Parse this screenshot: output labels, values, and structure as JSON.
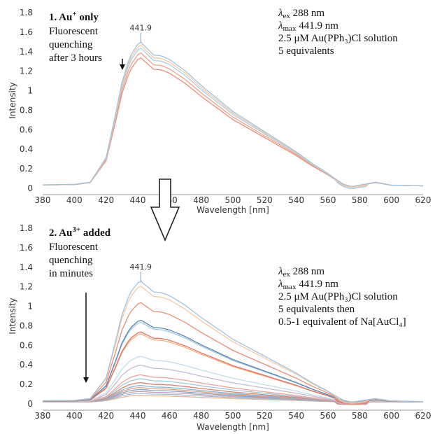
{
  "chart_data": [
    {
      "type": "line",
      "panel_label": "1. Au",
      "panel_label_sup": "+",
      "panel_label_tail": " only",
      "left_note": [
        "Fluorescent",
        "quenching",
        "after 3 hours"
      ],
      "info": [
        {
          "sym": "λ",
          "sub": "ex",
          "text": " 288 nm"
        },
        {
          "sym": "λ",
          "sub": "max",
          "text": " 441.9 nm"
        },
        {
          "sym": "",
          "sub": "",
          "text": "2.5 μM Au(PPh₃)Cl solution"
        },
        {
          "sym": "",
          "sub": "",
          "text": "5 equivalents"
        }
      ],
      "peak_label": "441.9",
      "xlabel": "Wavelength [nm]",
      "ylabel": "Intensity",
      "xlim": [
        380,
        620
      ],
      "ylim": [
        0,
        1.8
      ],
      "x_ticks": [
        "380",
        "400",
        "420",
        "440",
        "460",
        "480",
        "500",
        "520",
        "540",
        "560",
        "580",
        "600",
        "620"
      ],
      "y_ticks": [
        "0",
        "0.2",
        "0.4",
        "0.6",
        "0.8",
        "1",
        "1.2",
        "1.4",
        "1.6",
        "1.8"
      ],
      "series_colors": [
        "#9ec3df",
        "#f6c9a0",
        "#a9cfe6",
        "#f3a08a",
        "#ec8d76"
      ],
      "peaks": [
        1.48,
        1.45,
        1.42,
        1.37,
        1.32
      ]
    },
    {
      "type": "line",
      "panel_label": "2. Au",
      "panel_label_sup": "3+",
      "panel_label_tail": " added",
      "left_note": [
        "Fluorescent",
        "quenching",
        "in minutes"
      ],
      "info": [
        {
          "sym": "λ",
          "sub": "ex",
          "text": " 288 nm"
        },
        {
          "sym": "λ",
          "sub": "max",
          "text": " 441.9 nm"
        },
        {
          "sym": "",
          "sub": "",
          "text": "2.5 μM Au(PPh₃)Cl solution"
        },
        {
          "sym": "",
          "sub": "",
          "text": "5 equivalents then"
        },
        {
          "sym": "",
          "sub": "",
          "text": "0.5-1 equivalent of Na[AuCl₄]"
        }
      ],
      "peak_label": "441.9",
      "xlabel": "Wavelength [nm]",
      "ylabel": "Intensity",
      "xlim": [
        380,
        620
      ],
      "ylim": [
        0,
        1.8
      ],
      "x_ticks": [
        "380",
        "400",
        "420",
        "440",
        "460",
        "480",
        "500",
        "520",
        "540",
        "560",
        "580",
        "600",
        "620"
      ],
      "y_ticks": [
        "0",
        "0.2",
        "0.4",
        "0.6",
        "0.8",
        "1",
        "1.2",
        "1.4",
        "1.6",
        "1.8"
      ],
      "series_colors": [
        "#9ec3df",
        "#f6c9a0",
        "#ec8d76",
        "#5b86b3",
        "#9fc7e4",
        "#e07060",
        "#f3b27f",
        "#bfdde9",
        "#c8b9d8",
        "#f0a39a",
        "#a2c8dd",
        "#d9826b",
        "#86b8d8",
        "#e5a07c",
        "#7fa6c9",
        "#c9a0b8",
        "#9ec3df",
        "#f0b48c"
      ],
      "peaks": [
        1.24,
        1.19,
        1.02,
        0.84,
        0.82,
        0.72,
        0.7,
        0.47,
        0.38,
        0.28,
        0.24,
        0.2,
        0.17,
        0.15,
        0.13,
        0.11,
        0.09,
        0.07
      ]
    }
  ],
  "arrow_between_panels": "down-arrow"
}
